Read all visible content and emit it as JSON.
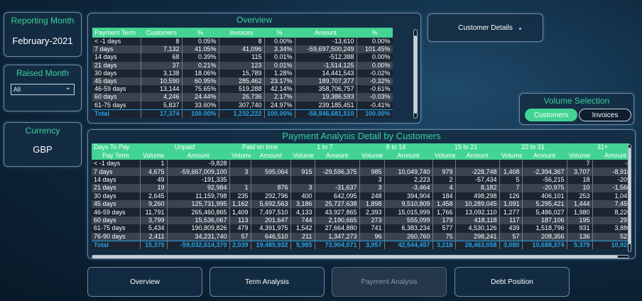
{
  "reporting_month": {
    "title": "Reporting Month",
    "value": "February-2021"
  },
  "raised_month": {
    "title": "Raised Month",
    "selected": "All"
  },
  "currency": {
    "title": "Currency",
    "value": "GBP"
  },
  "overview": {
    "title": "Overview",
    "headers": [
      "Payment Term",
      "Customers",
      "%",
      "Invoices",
      "%",
      "Amount",
      "%"
    ],
    "rows": [
      [
        "< -1 days",
        "8",
        "0.05%",
        "8",
        "0.00%",
        "-13,610",
        "0.00%"
      ],
      [
        "7 days",
        "7,132",
        "41.05%",
        "41,096",
        "3.34%",
        "-59,697,500,249",
        "101.45%"
      ],
      [
        "14 days",
        "68",
        "0.39%",
        "115",
        "0.01%",
        "-512,388",
        "0.00%"
      ],
      [
        "21 days",
        "37",
        "0.21%",
        "123",
        "0.01%",
        "-1,514,125",
        "0.00%"
      ],
      [
        "30 days",
        "3,138",
        "18.06%",
        "15,789",
        "1.28%",
        "14,441,543",
        "-0.02%"
      ],
      [
        "45 days",
        "10,590",
        "60.95%",
        "285,462",
        "23.17%",
        "189,707,377",
        "-0.32%"
      ],
      [
        "46-59 days",
        "13,144",
        "75.65%",
        "519,288",
        "42.14%",
        "358,706,757",
        "-0.61%"
      ],
      [
        "60 days",
        "4,246",
        "24.44%",
        "26,736",
        "2.17%",
        "19,386,593",
        "-0.03%"
      ],
      [
        "61-75 days",
        "5,837",
        "33.60%",
        "307,740",
        "24.97%",
        "239,185,451",
        "-0.41%"
      ]
    ],
    "total": [
      "Total",
      "17,374",
      "100.00%",
      "1,232,222",
      "100.00%",
      "-58,846,681,510",
      "100.00%"
    ]
  },
  "customer_details_button": "Customer Details",
  "volume_selection": {
    "title": "Volume Selection",
    "options": [
      "Customers",
      "Invoices"
    ],
    "selected": "Customers"
  },
  "payment_analysis": {
    "title": "Payment Analysis Detail by Customers",
    "group_label": "Days To Pay",
    "groups": [
      "Unpaid",
      "Paid on time",
      "1 to 7",
      "8 to 14",
      "15 to 21",
      "22 to 31",
      "31+"
    ],
    "row_header": "Pay Term",
    "sub_headers": [
      "Volume",
      "Amount"
    ],
    "rows": [
      [
        "< -1 days",
        "1",
        "-9,828",
        "",
        "",
        "",
        "",
        "",
        "",
        "",
        "",
        "",
        "",
        "7",
        "-3,7"
      ],
      [
        "7 days",
        "4,675",
        "-59,667,009,100",
        "3",
        "595,064",
        "915",
        "-29,596,375",
        "985",
        "10,049,740",
        "979",
        "-228,748",
        "1,408",
        "-2,394,367",
        "3,707",
        "-8,916,4"
      ],
      [
        "14 days",
        "49",
        "-191,335",
        "",
        "",
        "",
        "",
        "3",
        "2,223",
        "2",
        "-57,434",
        "5",
        "-56,215",
        "18",
        "-209,6"
      ],
      [
        "21 days",
        "19",
        "92,984",
        "1",
        "876",
        "3",
        "-31,637",
        "3",
        "-3,464",
        "4",
        "8,182",
        "7",
        "-20,975",
        "10",
        "-1,560,0"
      ],
      [
        "30 days",
        "2,645",
        "11,159,798",
        "235",
        "292,796",
        "400",
        "642,095",
        "248",
        "394,904",
        "184",
        "498,298",
        "126",
        "406,101",
        "253",
        "1,047,5"
      ],
      [
        "45 days",
        "9,260",
        "125,731,995",
        "1,162",
        "5,692,563",
        "3,186",
        "25,727,638",
        "1,898",
        "9,510,809",
        "1,458",
        "10,289,045",
        "1,091",
        "5,295,421",
        "1,444",
        "7,459,9"
      ],
      [
        "46-59 days",
        "11,791",
        "265,460,865",
        "1,409",
        "7,497,510",
        "4,133",
        "43,927,865",
        "2,393",
        "15,015,999",
        "1,766",
        "13,092,110",
        "1,277",
        "5,486,027",
        "1,980",
        "8,226,3"
      ],
      [
        "60 days",
        "3,799",
        "15,536,067",
        "113",
        "201,647",
        "744",
        "2,190,665",
        "273",
        "555,099",
        "179",
        "418,118",
        "117",
        "187,106",
        "195",
        "297,8"
      ],
      [
        "61-75 days",
        "5,434",
        "190,809,826",
        "479",
        "4,391,975",
        "1,542",
        "27,664,880",
        "741",
        "6,383,234",
        "577",
        "4,530,126",
        "439",
        "1,518,796",
        "931",
        "3,886,6"
      ],
      [
        "76-90 days",
        "2,411",
        "34,231,740",
        "57",
        "646,510",
        "211",
        "1,347,273",
        "96",
        "260,760",
        "75",
        "298,241",
        "57",
        "208,356",
        "136",
        "522,4"
      ]
    ],
    "total": [
      "Total",
      "15,375",
      "-59,032,614,370",
      "2,039",
      "19,485,932",
      "5,985",
      "73,904,071",
      "3,957",
      "42,544,457",
      "3,218",
      "28,463,058",
      "3,080",
      "10,688,374",
      "5,379",
      "10,926,9"
    ]
  },
  "nav": {
    "overview": "Overview",
    "term_analysis": "Term Analysis",
    "payment_analysis": "Payment Analysis",
    "debt_position": "Debt Position"
  },
  "colors": {
    "accent_green": "#43d493",
    "total_blue": "#25a3e4",
    "panel_border": "#6d8aa3"
  }
}
